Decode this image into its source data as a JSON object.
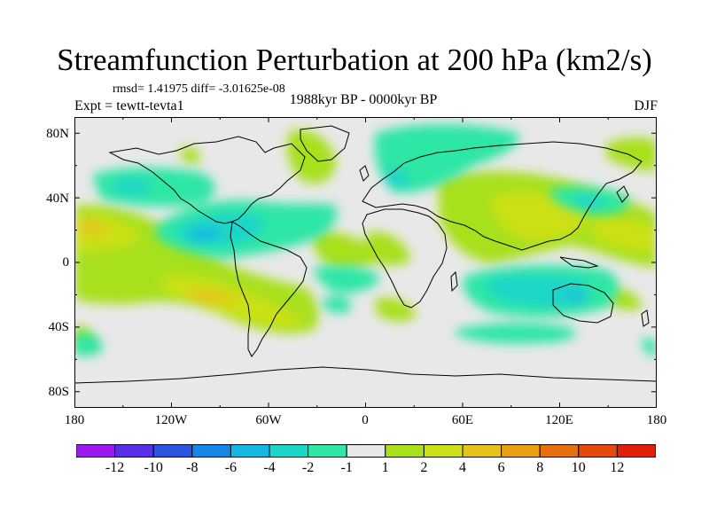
{
  "title": "Streamfunction Perturbation at 200 hPa (km2/s)",
  "stats": "rmsd= 1.41975  diff= -3.01625e-08",
  "expt": "Expt = tewtt-tevta1",
  "period": "1988kyr BP - 0000kyr BP",
  "season": "DJF",
  "lat_labels": [
    "80N",
    "40N",
    "0",
    "40S",
    "80S"
  ],
  "lon_labels": [
    "180",
    "120W",
    "60W",
    "0",
    "60E",
    "120E",
    "180"
  ],
  "colorbar": {
    "labels": [
      "-12",
      "-10",
      "-8",
      "-6",
      "-4",
      "-2",
      "-1",
      "1",
      "2",
      "4",
      "6",
      "8",
      "10",
      "12"
    ],
    "colors": [
      "#9b1bef",
      "#5b2ee8",
      "#2b55e0",
      "#1388e6",
      "#12b8e0",
      "#1bd6c8",
      "#2ee6a6",
      "#e8e8e8",
      "#a8e01c",
      "#cde018",
      "#e4c31a",
      "#e8a112",
      "#e6700e",
      "#e34a0c",
      "#e11e0a"
    ]
  },
  "icons": {
    "coastline": "coastline-outline"
  }
}
